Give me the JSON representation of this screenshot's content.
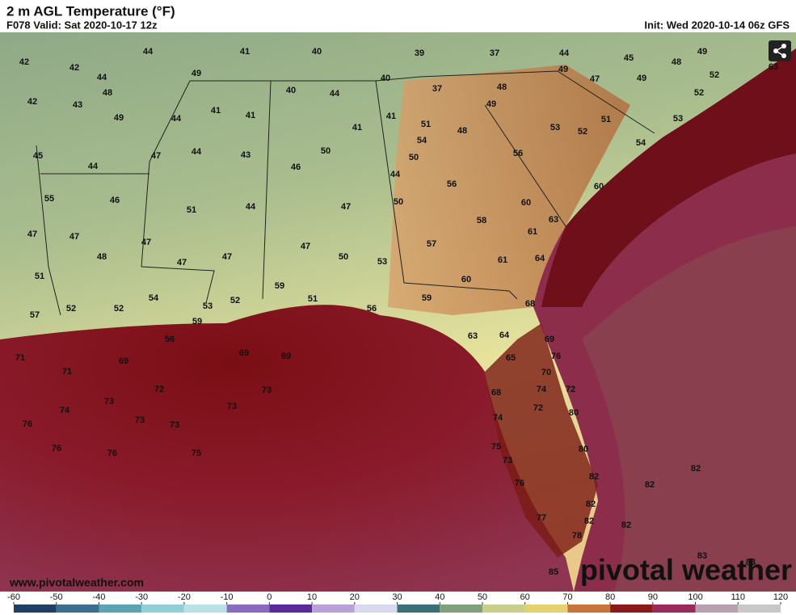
{
  "header": {
    "title": "2 m AGL Temperature (°F)",
    "valid": "F078 Valid: Sat 2020-10-17 12z",
    "init": "Init: Wed 2020-10-14 06z GFS"
  },
  "map": {
    "labels": [
      42,
      42,
      44,
      41,
      40,
      39,
      37,
      44,
      45,
      48,
      49,
      44,
      48,
      49,
      40,
      44,
      40,
      37,
      48,
      49,
      47,
      49,
      52,
      63,
      42,
      43,
      49,
      41,
      44,
      41,
      41,
      41,
      51,
      48,
      49,
      53,
      52,
      51,
      53,
      52,
      45,
      44,
      47,
      44,
      43,
      50,
      54,
      50,
      56,
      54,
      46,
      44,
      56,
      60,
      55,
      46,
      51,
      44,
      47,
      50,
      60,
      63,
      47,
      47,
      47,
      48,
      47,
      47,
      47,
      57,
      58,
      61,
      51,
      50,
      53,
      61,
      60,
      64,
      57,
      52,
      52,
      54,
      53,
      52,
      59,
      59,
      56,
      68,
      59,
      51,
      56,
      71,
      69,
      69,
      69,
      63,
      64,
      65,
      69,
      76,
      71,
      72,
      73,
      70,
      74,
      72,
      73,
      74,
      73,
      68,
      72,
      80,
      76,
      73,
      73,
      74,
      76,
      76,
      75,
      75,
      80,
      73,
      82,
      82,
      76,
      82,
      82,
      77,
      82,
      82,
      78,
      83,
      83,
      85
    ]
  },
  "footer": {
    "website": "www.pivotalweather.com",
    "logo": "pivotal weather"
  },
  "colorbar": {
    "ticks": [
      -60,
      -50,
      -40,
      -30,
      -20,
      -10,
      0,
      10,
      20,
      30,
      40,
      50,
      60,
      70,
      80,
      90,
      100,
      110,
      120
    ]
  }
}
